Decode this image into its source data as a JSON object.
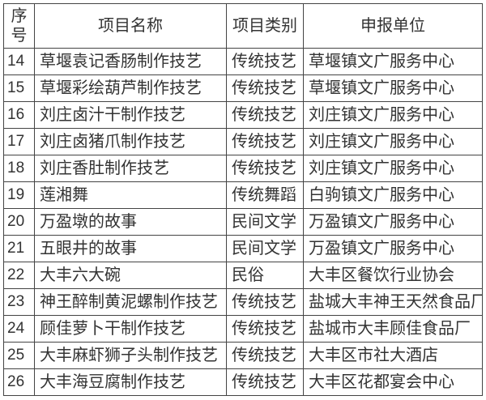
{
  "headers": [
    "序\n号",
    "项目名称",
    "项目类别",
    "申报单位"
  ],
  "rows": [
    [
      "14",
      "草堰袁记香肠制作技艺",
      "传统技艺",
      "草堰镇文广服务中心"
    ],
    [
      "15",
      "草堰彩绘葫芦制作技艺",
      "传统技艺",
      "草堰镇文广服务中心"
    ],
    [
      "16",
      "刘庄卤汁干制作技艺",
      "传统技艺",
      "刘庄镇文广服务中心"
    ],
    [
      "17",
      "刘庄卤猪爪制作技艺",
      "传统技艺",
      "刘庄镇文广服务中心"
    ],
    [
      "18",
      "刘庄香肚制作技艺",
      "传统技艺",
      "刘庄镇文广服务中心"
    ],
    [
      "19",
      "莲湘舞",
      "传统舞蹈",
      "白驹镇文广服务中心"
    ],
    [
      "20",
      "万盈墩的故事",
      "民间文学",
      "万盈镇文广服务中心"
    ],
    [
      "21",
      "五眼井的故事",
      "民间文学",
      "万盈镇文广服务中心"
    ],
    [
      "22",
      "大丰六大碗",
      "民俗",
      "大丰区餐饮行业协会"
    ],
    [
      "23",
      "神王醉制黄泥螺制作技艺",
      "传统技艺",
      "盐城大丰神王天然食品厂"
    ],
    [
      "24",
      "顾佳萝卜干制作技艺",
      "传统技艺",
      "盐城市大丰顾佳食品厂"
    ],
    [
      "25",
      "大丰麻虾狮子头制作技艺",
      "传统技艺",
      "大丰区市社大酒店"
    ],
    [
      "26",
      "大丰海豆腐制作技艺",
      "传统技艺",
      "大丰区花都宴会中心"
    ]
  ]
}
